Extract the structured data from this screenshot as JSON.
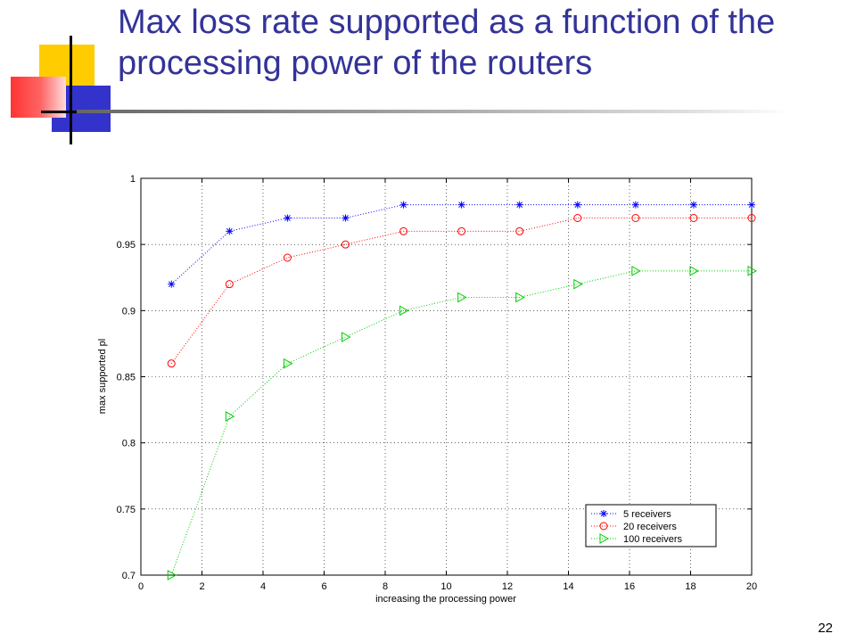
{
  "slide": {
    "title": "Max loss rate supported as a function of the processing power of the routers",
    "page_number": "22"
  },
  "chart_data": {
    "type": "line",
    "xlabel": "increasing the processing power",
    "ylabel": "max supported pl",
    "xlim": [
      0,
      20
    ],
    "ylim": [
      0.7,
      1
    ],
    "x_ticks": [
      "0",
      "2",
      "4",
      "6",
      "8",
      "10",
      "12",
      "14",
      "16",
      "18",
      "20"
    ],
    "y_ticks": [
      "0.7",
      "0.75",
      "0.8",
      "0.85",
      "0.9",
      "0.95",
      "1"
    ],
    "grid": true,
    "legend_position": "bottom-right",
    "series": [
      {
        "name": "5 receivers",
        "marker": "star",
        "color": "#0000ff",
        "x": [
          1,
          2.9,
          4.8,
          6.7,
          8.6,
          10.5,
          12.4,
          14.3,
          16.2,
          18.1,
          20
        ],
        "values": [
          0.92,
          0.96,
          0.97,
          0.97,
          0.98,
          0.98,
          0.98,
          0.98,
          0.98,
          0.98,
          0.98
        ]
      },
      {
        "name": "20 receivers",
        "marker": "circle",
        "color": "#ff0000",
        "x": [
          1,
          2.9,
          4.8,
          6.7,
          8.6,
          10.5,
          12.4,
          14.3,
          16.2,
          18.1,
          20
        ],
        "values": [
          0.86,
          0.92,
          0.94,
          0.95,
          0.96,
          0.96,
          0.96,
          0.97,
          0.97,
          0.97,
          0.97
        ]
      },
      {
        "name": "100 receivers",
        "marker": "triangle-right",
        "color": "#00cc00",
        "x": [
          1,
          2.9,
          4.8,
          6.7,
          8.6,
          10.5,
          12.4,
          14.3,
          16.2,
          18.1,
          20
        ],
        "values": [
          0.7,
          0.82,
          0.86,
          0.88,
          0.9,
          0.91,
          0.91,
          0.92,
          0.93,
          0.93,
          0.93
        ]
      }
    ]
  }
}
